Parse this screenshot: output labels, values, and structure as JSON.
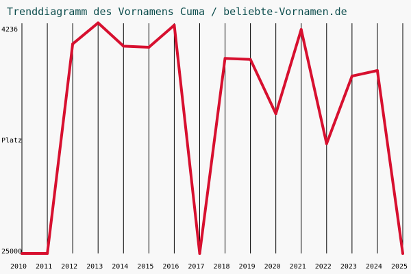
{
  "title": "Trenddiagramm des Vornamens Cuma / beliebte-Vornamen.de",
  "chart_data": {
    "type": "line",
    "title": "Trenddiagramm des Vornamens Cuma / beliebte-Vornamen.de",
    "ylabel": "Platz",
    "y_top_label": "4236",
    "y_bottom_label": "25000",
    "ylim": [
      25000,
      4236
    ],
    "y_reversed": true,
    "x": [
      "2010",
      "2011",
      "2012",
      "2013",
      "2014",
      "2015",
      "2016",
      "2017",
      "2018",
      "2019",
      "2020",
      "2021",
      "2022",
      "2023",
      "2024",
      "2025"
    ],
    "series": [
      {
        "values": [
          25000,
          25000,
          6100,
          4200,
          6300,
          6400,
          4400,
          25000,
          7400,
          7500,
          12400,
          4800,
          15100,
          9000,
          8500,
          25000
        ]
      }
    ],
    "grid": "vertical lines at each year",
    "line_color": "#d7102f"
  }
}
